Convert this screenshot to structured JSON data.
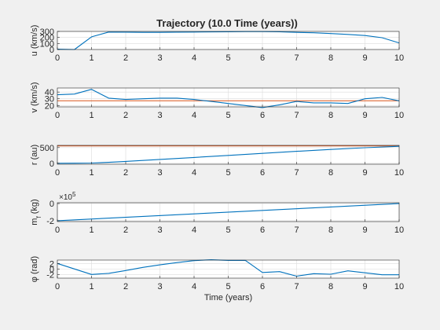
{
  "figure": {
    "background": "#f0f0f0",
    "axes_background": "#ffffff",
    "line_color": "#0072bd",
    "ref_color": "#d95319"
  },
  "chart_data": [
    {
      "type": "line",
      "title": "Trajectory (10.0 Time (years))",
      "xlabel": "",
      "ylabel": "u (km/s)",
      "xlim": [
        0,
        10
      ],
      "ylim": [
        0,
        300
      ],
      "xticks": [
        "0",
        "1",
        "2",
        "3",
        "4",
        "5",
        "6",
        "7",
        "8",
        "9",
        "10"
      ],
      "yticks": [
        {
          "v": 0,
          "label": "0"
        },
        {
          "v": 100,
          "label": "100"
        },
        {
          "v": 200,
          "label": "200"
        },
        {
          "v": 300,
          "label": "300"
        }
      ],
      "grid": true,
      "x": [
        0,
        0.5,
        1,
        1.5,
        2,
        2.5,
        3,
        3.5,
        4,
        4.5,
        5,
        5.5,
        6,
        6.5,
        7,
        7.5,
        8,
        8.5,
        9,
        9.5,
        10
      ],
      "values": [
        5,
        0,
        210,
        290,
        288,
        285,
        285,
        288,
        290,
        292,
        295,
        298,
        298,
        295,
        285,
        278,
        265,
        250,
        232,
        195,
        110
      ],
      "refline": null
    },
    {
      "type": "line",
      "xlabel": "",
      "ylabel": "v (km/s)",
      "xlim": [
        0,
        10
      ],
      "ylim": [
        18,
        46
      ],
      "xticks": [
        "0",
        "1",
        "2",
        "3",
        "4",
        "5",
        "6",
        "7",
        "8",
        "9",
        "10"
      ],
      "yticks": [
        {
          "v": 20,
          "label": "20"
        },
        {
          "v": 30,
          "label": "30"
        },
        {
          "v": 40,
          "label": "40"
        }
      ],
      "grid": true,
      "x": [
        0,
        0.5,
        1,
        1.5,
        2,
        2.5,
        3,
        3.5,
        4,
        4.5,
        5,
        5.5,
        6,
        6.5,
        7,
        7.5,
        8,
        8.5,
        9,
        9.5,
        10
      ],
      "values": [
        36,
        37,
        44,
        31,
        29,
        30,
        31,
        31,
        29,
        26,
        23,
        20,
        17,
        21,
        26,
        24,
        24,
        23,
        30,
        32,
        27
      ],
      "refline": 27
    },
    {
      "type": "line",
      "xlabel": "",
      "ylabel": "r (au)",
      "xlim": [
        0,
        10
      ],
      "ylim": [
        -30,
        570
      ],
      "xticks": [
        "0",
        "1",
        "2",
        "3",
        "4",
        "5",
        "6",
        "7",
        "8",
        "9",
        "10"
      ],
      "yticks": [
        {
          "v": 0,
          "label": "0"
        },
        {
          "v": 500,
          "label": "500"
        }
      ],
      "grid": true,
      "x": [
        0,
        0.5,
        1,
        1.5,
        2,
        3,
        4,
        5,
        6,
        7,
        8,
        9,
        10
      ],
      "values": [
        1,
        2,
        8,
        30,
        60,
        122,
        186,
        250,
        315,
        380,
        440,
        495,
        540
      ],
      "refline": 550
    },
    {
      "type": "line",
      "xlabel": "",
      "ylabel": "m_f (kg)",
      "multiplier": "×10^5",
      "xlim": [
        0,
        10
      ],
      "ylim": [
        -2.1,
        0.1
      ],
      "xticks": [
        "0",
        "1",
        "2",
        "3",
        "4",
        "5",
        "6",
        "7",
        "8",
        "9",
        "10"
      ],
      "yticks": [
        {
          "v": 0,
          "label": "0"
        },
        {
          "v": -2,
          "label": "-2"
        }
      ],
      "grid": true,
      "x": [
        0,
        10
      ],
      "values": [
        -2.0,
        0
      ],
      "refline": null
    },
    {
      "type": "line",
      "xlabel": "Time (years)",
      "ylabel": "φ (rad)",
      "xlim": [
        0,
        10
      ],
      "ylim": [
        -3.2,
        3.2
      ],
      "xticks": [
        "0",
        "1",
        "2",
        "3",
        "4",
        "5",
        "6",
        "7",
        "8",
        "9",
        "10"
      ],
      "yticks": [
        {
          "v": -2,
          "label": "-2"
        },
        {
          "v": 0,
          "label": "0"
        },
        {
          "v": 2,
          "label": "2"
        }
      ],
      "grid": true,
      "x": [
        0,
        1,
        1.5,
        2,
        2.5,
        3,
        3.5,
        4,
        4.5,
        5,
        5.5,
        6,
        6.5,
        7,
        7.5,
        8,
        8.5,
        9,
        9.5,
        10
      ],
      "values": [
        2.0,
        -1.9,
        -1.5,
        -0.5,
        0.6,
        1.5,
        2.3,
        3.0,
        3.3,
        3.1,
        3.1,
        -1.2,
        -0.9,
        -2.5,
        -1.6,
        -1.8,
        -0.6,
        -1.3,
        -2.0,
        -2.0
      ],
      "refline": null
    }
  ]
}
